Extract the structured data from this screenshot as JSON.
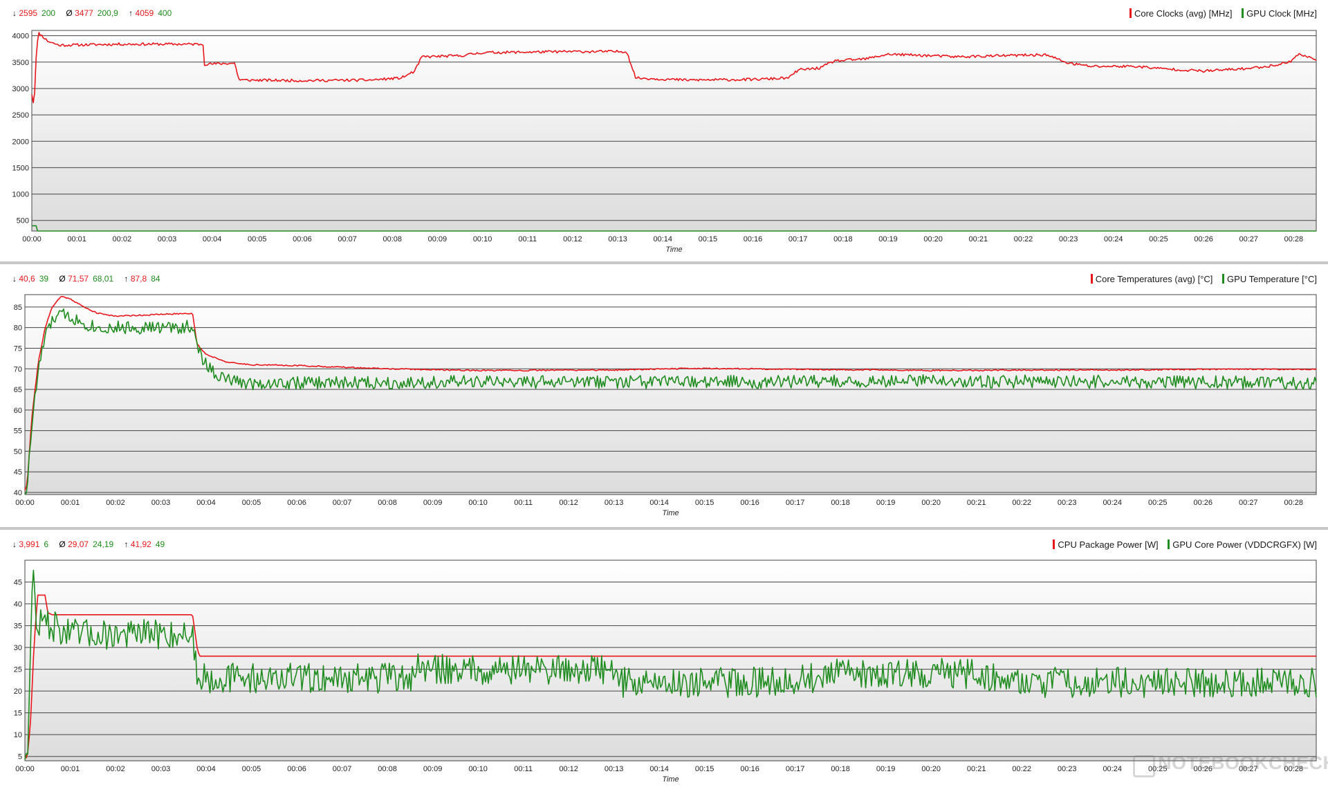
{
  "colors": {
    "red": "#e8161b",
    "green": "#1e8c1e",
    "grid": "#444444",
    "axis_text": "#222222",
    "plot_bg_top": "#ffffff",
    "plot_bg_bottom": "#dcdcdc"
  },
  "watermark": {
    "text": "NOTEBOOKCHECK"
  },
  "panels": [
    {
      "stats": {
        "min_red": "2595",
        "min_green": "200",
        "avg_red": "3477",
        "avg_green": "200,9",
        "max_red": "4059",
        "max_green": "400"
      },
      "legend": [
        {
          "label": "Core Clocks (avg) [MHz]",
          "color": "#e8161b"
        },
        {
          "label": "GPU Clock [MHz]",
          "color": "#1e8c1e"
        }
      ]
    },
    {
      "stats": {
        "min_red": "40,6",
        "min_green": "39",
        "avg_red": "71,57",
        "avg_green": "68,01",
        "max_red": "87,8",
        "max_green": "84"
      },
      "legend": [
        {
          "label": "Core Temperatures (avg) [°C]",
          "color": "#e8161b"
        },
        {
          "label": "GPU Temperature [°C]",
          "color": "#1e8c1e"
        }
      ]
    },
    {
      "stats": {
        "min_red": "3,991",
        "min_green": "6",
        "avg_red": "29,07",
        "avg_green": "24,19",
        "max_red": "41,92",
        "max_green": "49"
      },
      "legend": [
        {
          "label": "CPU Package Power [W]",
          "color": "#e8161b"
        },
        {
          "label": "GPU Core Power (VDDCRGFX) [W]",
          "color": "#1e8c1e"
        }
      ]
    }
  ],
  "chart_data": [
    {
      "type": "line",
      "xlabel": "Time",
      "ylabel": "",
      "x_ticks": [
        "00:00",
        "00:01",
        "00:02",
        "00:03",
        "00:04",
        "00:05",
        "00:06",
        "00:07",
        "00:08",
        "00:09",
        "00:10",
        "00:11",
        "00:12",
        "00:13",
        "00:14",
        "00:15",
        "00:16",
        "00:17",
        "00:18",
        "00:19",
        "00:20",
        "00:21",
        "00:22",
        "00:23",
        "00:24",
        "00:25",
        "00:26",
        "00:27",
        "00:28"
      ],
      "xlim_minutes": [
        0,
        28.5
      ],
      "ylim": [
        300,
        4100
      ],
      "y_ticks": [
        500,
        1000,
        1500,
        2000,
        2500,
        3000,
        3500,
        4000
      ],
      "series": [
        {
          "name": "Core Clocks (avg) [MHz]",
          "color": "#e8161b",
          "noise": 25,
          "seed": 11,
          "points": [
            [
              0,
              2900
            ],
            [
              0.05,
              2650
            ],
            [
              0.1,
              3700
            ],
            [
              0.15,
              4050
            ],
            [
              0.25,
              3980
            ],
            [
              0.35,
              3900
            ],
            [
              0.6,
              3820
            ],
            [
              2,
              3840
            ],
            [
              3.8,
              3840
            ],
            [
              3.82,
              3460
            ],
            [
              4.5,
              3480
            ],
            [
              4.6,
              3160
            ],
            [
              6,
              3150
            ],
            [
              7.5,
              3160
            ],
            [
              8.2,
              3200
            ],
            [
              8.5,
              3330
            ],
            [
              8.65,
              3600
            ],
            [
              9.5,
              3620
            ],
            [
              10,
              3680
            ],
            [
              12,
              3700
            ],
            [
              13.2,
              3700
            ],
            [
              13.4,
              3200
            ],
            [
              14.5,
              3160
            ],
            [
              16,
              3170
            ],
            [
              16.8,
              3200
            ],
            [
              17,
              3350
            ],
            [
              17.5,
              3390
            ],
            [
              17.8,
              3520
            ],
            [
              18.5,
              3560
            ],
            [
              19,
              3650
            ],
            [
              20,
              3620
            ],
            [
              20.5,
              3600
            ],
            [
              21,
              3610
            ],
            [
              22.5,
              3640
            ],
            [
              23,
              3480
            ],
            [
              23.5,
              3420
            ],
            [
              24.5,
              3420
            ],
            [
              25,
              3380
            ],
            [
              26,
              3330
            ],
            [
              27,
              3380
            ],
            [
              27.5,
              3430
            ],
            [
              27.9,
              3500
            ],
            [
              28.1,
              3650
            ],
            [
              28.5,
              3550
            ]
          ]
        },
        {
          "name": "GPU Clock [MHz]",
          "color": "#1e8c1e",
          "noise": 0,
          "seed": 0,
          "points": [
            [
              0,
              400
            ],
            [
              0.1,
              400
            ],
            [
              0.13,
              200
            ],
            [
              28.5,
              200
            ]
          ]
        }
      ]
    },
    {
      "type": "line",
      "xlabel": "Time",
      "ylabel": "",
      "x_ticks": [
        "00:00",
        "00:01",
        "00:02",
        "00:03",
        "00:04",
        "00:05",
        "00:06",
        "00:07",
        "00:08",
        "00:09",
        "00:10",
        "00:11",
        "00:12",
        "00:13",
        "00:14",
        "00:15",
        "00:16",
        "00:17",
        "00:18",
        "00:19",
        "00:20",
        "00:21",
        "00:22",
        "00:23",
        "00:24",
        "00:25",
        "00:26",
        "00:27",
        "00:28"
      ],
      "xlim_minutes": [
        0,
        28.5
      ],
      "ylim": [
        39.5,
        88
      ],
      "y_ticks": [
        40,
        45,
        50,
        55,
        60,
        65,
        70,
        75,
        80,
        85
      ],
      "series": [
        {
          "name": "Core Temperatures (avg) [°C]",
          "color": "#e8161b",
          "noise": 0.15,
          "seed": 21,
          "points": [
            [
              0,
              40.6
            ],
            [
              0.05,
              42
            ],
            [
              0.15,
              58
            ],
            [
              0.3,
              72
            ],
            [
              0.45,
              80
            ],
            [
              0.6,
              85
            ],
            [
              0.8,
              87.6
            ],
            [
              1.0,
              87
            ],
            [
              1.3,
              85
            ],
            [
              1.6,
              83.5
            ],
            [
              2,
              82.8
            ],
            [
              3,
              83.2
            ],
            [
              3.7,
              83.5
            ],
            [
              3.8,
              76
            ],
            [
              4,
              73.5
            ],
            [
              4.5,
              71.5
            ],
            [
              5,
              71
            ],
            [
              6,
              70.8
            ],
            [
              7,
              70.4
            ],
            [
              8,
              70
            ],
            [
              9,
              69.8
            ],
            [
              10,
              69.6
            ],
            [
              11,
              69.6
            ],
            [
              12,
              69.7
            ],
            [
              13,
              69.7
            ],
            [
              14,
              70
            ],
            [
              15,
              70.1
            ],
            [
              16,
              70
            ],
            [
              17,
              69.9
            ],
            [
              18,
              69.8
            ],
            [
              19,
              69.7
            ],
            [
              20,
              69.6
            ],
            [
              21,
              69.6
            ],
            [
              22,
              69.7
            ],
            [
              23,
              69.7
            ],
            [
              24,
              69.7
            ],
            [
              25,
              69.8
            ],
            [
              26,
              69.9
            ],
            [
              27,
              69.9
            ],
            [
              28.5,
              69.9
            ]
          ]
        },
        {
          "name": "GPU Temperature [°C]",
          "color": "#1e8c1e",
          "noise": 1.6,
          "seed": 33,
          "points": [
            [
              0,
              40
            ],
            [
              0.05,
              41
            ],
            [
              0.15,
              56
            ],
            [
              0.3,
              70
            ],
            [
              0.45,
              78
            ],
            [
              0.65,
              82.5
            ],
            [
              0.9,
              83.3
            ],
            [
              1.2,
              81.5
            ],
            [
              1.6,
              80
            ],
            [
              2.5,
              80
            ],
            [
              3.4,
              80
            ],
            [
              3.7,
              80.5
            ],
            [
              3.8,
              75
            ],
            [
              4,
              71
            ],
            [
              4.3,
              68
            ],
            [
              4.6,
              67
            ],
            [
              5,
              66.5
            ],
            [
              10,
              66.8
            ],
            [
              15,
              66.8
            ],
            [
              20,
              67
            ],
            [
              25,
              66.8
            ],
            [
              28.5,
              66.5
            ]
          ]
        }
      ]
    },
    {
      "type": "line",
      "xlabel": "Time",
      "ylabel": "",
      "x_ticks": [
        "00:00",
        "00:01",
        "00:02",
        "00:03",
        "00:04",
        "00:05",
        "00:06",
        "00:07",
        "00:08",
        "00:09",
        "00:10",
        "00:11",
        "00:12",
        "00:13",
        "00:14",
        "00:15",
        "00:16",
        "00:17",
        "00:18",
        "00:19",
        "00:20",
        "00:21",
        "00:22",
        "00:23",
        "00:24",
        "00:25",
        "00:26",
        "00:27",
        "00:28"
      ],
      "xlim_minutes": [
        0,
        28.5
      ],
      "ylim": [
        4,
        50
      ],
      "y_ticks": [
        5,
        10,
        15,
        20,
        25,
        30,
        35,
        40,
        45
      ],
      "series": [
        {
          "name": "CPU Package Power [W]",
          "color": "#e8161b",
          "noise": 0,
          "seed": 0,
          "points": [
            [
              0,
              5
            ],
            [
              0.05,
              4.5
            ],
            [
              0.12,
              12
            ],
            [
              0.2,
              30
            ],
            [
              0.28,
              42
            ],
            [
              0.45,
              42
            ],
            [
              0.5,
              38
            ],
            [
              0.6,
              37.5
            ],
            [
              3.7,
              37.5
            ],
            [
              3.8,
              30
            ],
            [
              3.85,
              28
            ],
            [
              28.5,
              28
            ]
          ]
        },
        {
          "name": "GPU Core Power (VDDCRGFX) [W]",
          "color": "#1e8c1e",
          "noise": 3.5,
          "seed": 47,
          "points": [
            [
              0,
              6
            ],
            [
              0.05,
              5
            ],
            [
              0.1,
              20
            ],
            [
              0.18,
              49
            ],
            [
              0.25,
              35
            ],
            [
              0.4,
              36
            ],
            [
              1,
              33
            ],
            [
              2,
              33
            ],
            [
              3,
              33
            ],
            [
              3.7,
              33
            ],
            [
              3.8,
              24
            ],
            [
              4,
              23
            ],
            [
              8.5,
              23
            ],
            [
              8.6,
              25
            ],
            [
              13,
              25
            ],
            [
              13.2,
              22
            ],
            [
              16,
              22
            ],
            [
              17.5,
              23
            ],
            [
              18,
              24
            ],
            [
              21,
              24
            ],
            [
              22,
              22
            ],
            [
              24,
              22
            ],
            [
              28.5,
              22
            ]
          ]
        }
      ]
    }
  ]
}
